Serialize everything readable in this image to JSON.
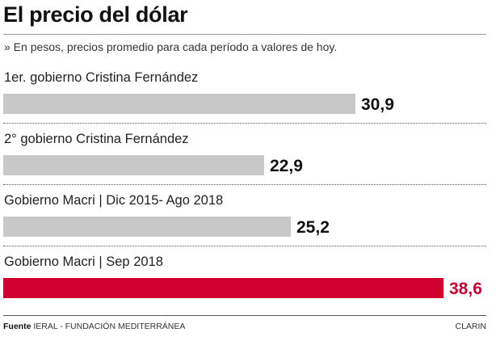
{
  "header": {
    "title": "El precio del dólar",
    "subtitle": "» En pesos, precios promedio para cada período a valores de hoy."
  },
  "footer": {
    "source_label": "Fuente",
    "source_text": "IERAL - FUNDACIÓN MEDITERRÁNEA",
    "brand": "CLARIN"
  },
  "colors": {
    "default_bar": "#c8c8c8",
    "highlight_bar": "#d0002f",
    "default_value": "#111111",
    "highlight_value": "#d0002f"
  },
  "chart_data": {
    "type": "bar",
    "orientation": "horizontal",
    "title": "El precio del dólar",
    "subtitle": "» En pesos, precios promedio para cada período a valores de hoy.",
    "categories": [
      "1er. gobierno Cristina Fernández",
      "2° gobierno Cristina Fernández",
      "Gobierno Macri | Dic 2015- Ago 2018",
      "Gobierno Macri | Sep 2018"
    ],
    "values": [
      30.9,
      22.9,
      25.2,
      38.6
    ],
    "value_labels": [
      "30,9",
      "22,9",
      "25,2",
      "38,6"
    ],
    "highlight_index": 3,
    "xlim": [
      0,
      38.6
    ],
    "xlabel": "",
    "ylabel": ""
  }
}
